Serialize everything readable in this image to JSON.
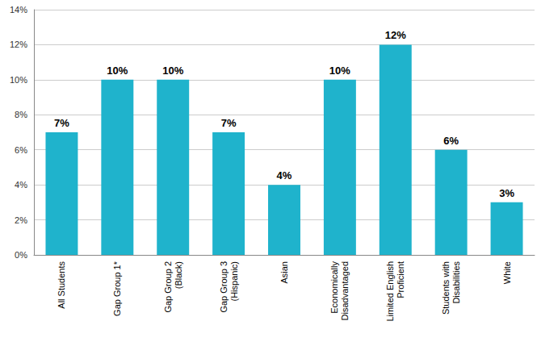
{
  "chart_data": {
    "type": "bar",
    "categories": [
      "All Students",
      "Gap Group 1*",
      "Gap Group 2\n(Black)",
      "Gap Group 3\n(Hispanic)",
      "Asian",
      "Economically\nDisadvantaged",
      "Limited English\nProficient",
      "Students with\nDisabilities",
      "White"
    ],
    "values": [
      7,
      10,
      10,
      7,
      4,
      10,
      12,
      6,
      3
    ],
    "value_labels": [
      "7%",
      "10%",
      "10%",
      "7%",
      "4%",
      "10%",
      "12%",
      "6%",
      "3%"
    ],
    "color": "#1fb3cc",
    "ylim": [
      0,
      14
    ],
    "yticks": [
      {
        "value": 0,
        "label": "0%"
      },
      {
        "value": 2,
        "label": "2%"
      },
      {
        "value": 4,
        "label": "4%"
      },
      {
        "value": 6,
        "label": "6%"
      },
      {
        "value": 8,
        "label": "8%"
      },
      {
        "value": 10,
        "label": "10%"
      },
      {
        "value": 12,
        "label": "12%"
      },
      {
        "value": 14,
        "label": "14%"
      }
    ],
    "grid": true,
    "data_labels": true
  }
}
